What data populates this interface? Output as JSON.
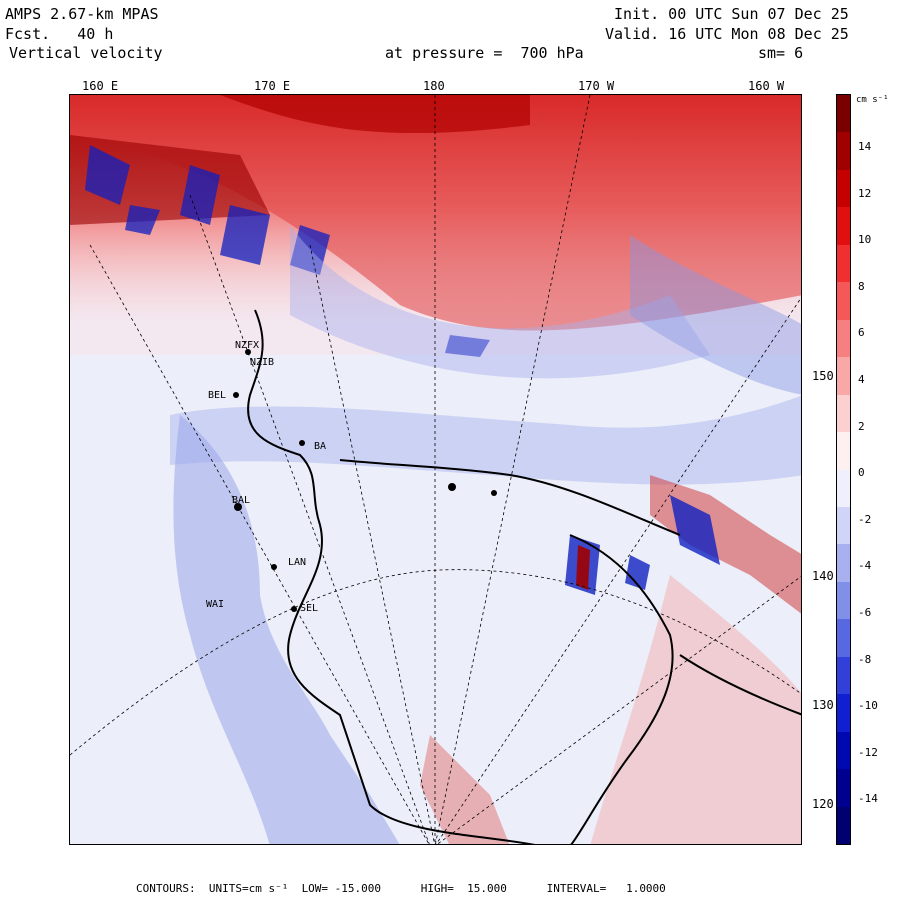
{
  "header": {
    "model": "AMPS 2.67-km MPAS",
    "forecast": "Fcst.   40 h",
    "field": "Vertical velocity",
    "init": "Init. 00 UTC Sun 07 Dec 25",
    "valid": "Valid. 16 UTC Mon 08 Dec 25",
    "level": "at pressure =  700 hPa",
    "smoothing": "sm= 6"
  },
  "lon_top_labels": [
    "160 E",
    "170 E",
    "180",
    "170 W",
    "160 W"
  ],
  "lon_right_labels": [
    "150 W",
    "140 W",
    "130 W",
    "120 W"
  ],
  "colorbar": {
    "unit": "cm s⁻¹",
    "ticks": [
      "14",
      "12",
      "10",
      "8",
      "6",
      "4",
      "2",
      "0",
      "-2",
      "-4",
      "-6",
      "-8",
      "-10",
      "-12",
      "-14"
    ],
    "colors": [
      "#7a0000",
      "#a00000",
      "#c40000",
      "#e01010",
      "#f03030",
      "#f45858",
      "#f68080",
      "#f9a8a8",
      "#fcd0d0",
      "#fdf0f0",
      "#f0f0fd",
      "#d0d4f8",
      "#a8b0f0",
      "#8090e8",
      "#5868e0",
      "#3040d8",
      "#1020d0",
      "#0008b0",
      "#000090",
      "#000070"
    ]
  },
  "stations": [
    "NZFX",
    "NZIB",
    "BEL",
    "BAL",
    "LAN",
    "SEL",
    "WAI",
    "BA"
  ],
  "footer": {
    "text": "CONTOURS:  UNITS=cm s⁻¹  LOW= -15.000      HIGH=  15.000      INTERVAL=   1.0000"
  }
}
